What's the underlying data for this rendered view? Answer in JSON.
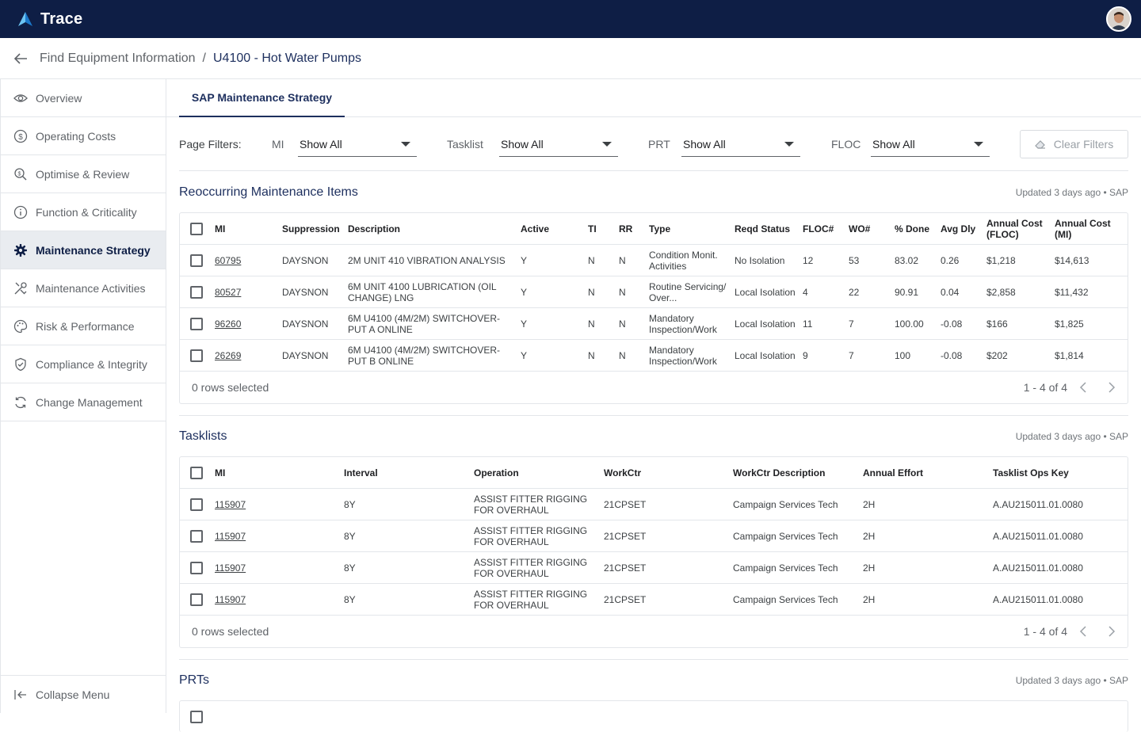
{
  "app": {
    "name": "Trace"
  },
  "breadcrumb": {
    "parent": "Find Equipment Information",
    "separator": "/",
    "current": "U4100 - Hot Water Pumps"
  },
  "sidebar": {
    "items": [
      {
        "label": "Overview",
        "icon": "eye-icon"
      },
      {
        "label": "Operating Costs",
        "icon": "dollar-icon"
      },
      {
        "label": "Optimise & Review",
        "icon": "search-dollar-icon"
      },
      {
        "label": "Function & Criticality",
        "icon": "info-icon"
      },
      {
        "label": "Maintenance Strategy",
        "icon": "gear-icon",
        "active": true
      },
      {
        "label": "Maintenance Activities",
        "icon": "tools-icon"
      },
      {
        "label": "Risk & Performance",
        "icon": "palette-icon"
      },
      {
        "label": "Compliance & Integrity",
        "icon": "shield-icon"
      },
      {
        "label": "Change Management",
        "icon": "refresh-icon"
      }
    ],
    "collapse_label": "Collapse Menu"
  },
  "tabs": {
    "active": "SAP Maintenance Strategy"
  },
  "filters": {
    "title": "Page Filters:",
    "mi": {
      "label": "MI",
      "value": "Show All"
    },
    "tasklist": {
      "label": "Tasklist",
      "value": "Show All"
    },
    "prt": {
      "label": "PRT",
      "value": "Show All"
    },
    "floc": {
      "label": "FLOC",
      "value": "Show All"
    },
    "clear_label": "Clear Filters"
  },
  "reoccurring": {
    "title": "Reoccurring Maintenance Items",
    "meta": "Updated 3 days ago • SAP",
    "headers": [
      "MI",
      "Suppression",
      "Description",
      "Active",
      "TI",
      "RR",
      "Type",
      "Reqd Status",
      "FLOC#",
      "WO#",
      "% Done",
      "Avg Dly",
      "Annual Cost (FLOC)",
      "Annual Cost (MI)"
    ],
    "rows": [
      [
        "60795",
        "DAYSNON",
        "2M UNIT 410 VIBRATION ANALYSIS",
        "Y",
        "N",
        "N",
        "Condition Monit. Activities",
        "No Isolation",
        "12",
        "53",
        "83.02",
        "0.26",
        "$1,218",
        "$14,613"
      ],
      [
        "80527",
        "DAYSNON",
        "6M UNIT 4100 LUBRICATION (OIL CHANGE) LNG",
        "Y",
        "N",
        "N",
        "Routine Servicing/ Over...",
        "Local Isolation",
        "4",
        "22",
        "90.91",
        "0.04",
        "$2,858",
        "$11,432"
      ],
      [
        "96260",
        "DAYSNON",
        "6M U4100 (4M/2M) SWITCHOVER-PUT A ONLINE",
        "Y",
        "N",
        "N",
        "Mandatory Inspection/Work",
        "Local Isolation",
        "11",
        "7",
        "100.00",
        "-0.08",
        "$166",
        "$1,825"
      ],
      [
        "26269",
        "DAYSNON",
        "6M U4100 (4M/2M) SWITCHOVER-PUT B ONLINE",
        "Y",
        "N",
        "N",
        "Mandatory Inspection/Work",
        "Local Isolation",
        "9",
        "7",
        "100",
        "-0.08",
        "$202",
        "$1,814"
      ]
    ],
    "selected": "0 rows selected",
    "pagination": "1 - 4 of 4"
  },
  "tasklists": {
    "title": "Tasklists",
    "meta": "Updated 3 days ago • SAP",
    "headers": [
      "MI",
      "Interval",
      "Operation",
      "WorkCtr",
      "WorkCtr Description",
      "Annual Effort",
      "Tasklist Ops Key"
    ],
    "rows": [
      [
        "115907",
        "8Y",
        "ASSIST FITTER RIGGING FOR OVERHAUL",
        "21CPSET",
        "Campaign Services Tech",
        "2H",
        "A.AU215011.01.0080"
      ],
      [
        "115907",
        "8Y",
        "ASSIST FITTER RIGGING FOR OVERHAUL",
        "21CPSET",
        "Campaign Services Tech",
        "2H",
        "A.AU215011.01.0080"
      ],
      [
        "115907",
        "8Y",
        "ASSIST FITTER RIGGING FOR OVERHAUL",
        "21CPSET",
        "Campaign Services Tech",
        "2H",
        "A.AU215011.01.0080"
      ],
      [
        "115907",
        "8Y",
        "ASSIST FITTER RIGGING FOR OVERHAUL",
        "21CPSET",
        "Campaign Services Tech",
        "2H",
        "A.AU215011.01.0080"
      ]
    ],
    "selected": "0 rows selected",
    "pagination": "1 - 4 of 4"
  },
  "prts": {
    "title": "PRTs",
    "meta": "Updated 3 days ago • SAP"
  },
  "colors": {
    "topbar": "#0e1e45",
    "accent": "#1d2f5e",
    "logo": "#4aa3e8"
  }
}
